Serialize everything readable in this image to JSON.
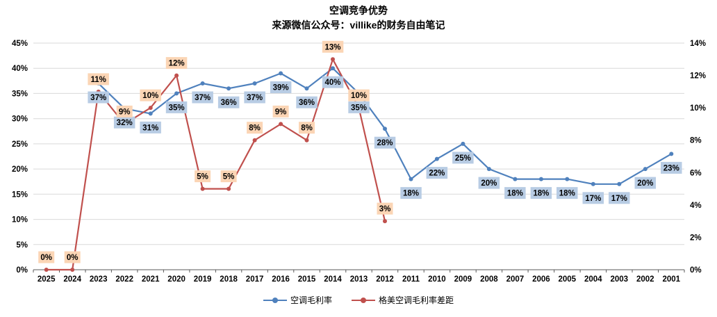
{
  "header": {
    "title": "空调竞争优势",
    "subtitle": "来源微信公众号：villike的财务自由笔记"
  },
  "chart_data": {
    "type": "line",
    "categories": [
      "2025",
      "2024",
      "2023",
      "2022",
      "2021",
      "2020",
      "2019",
      "2018",
      "2017",
      "2016",
      "2015",
      "2014",
      "2013",
      "2012",
      "2011",
      "2010",
      "2009",
      "2008",
      "2007",
      "2006",
      "2005",
      "2004",
      "2003",
      "2002",
      "2001"
    ],
    "series": [
      {
        "name": "空调毛利率",
        "axis": "left",
        "color": "#4F81BD",
        "label_bg": "#B8CCE4",
        "label_position": "below",
        "values": [
          null,
          null,
          37,
          32,
          31,
          35,
          37,
          36,
          37,
          39,
          36,
          40,
          35,
          28,
          18,
          22,
          25,
          20,
          18,
          18,
          18,
          17,
          17,
          20,
          23
        ]
      },
      {
        "name": "格美空调毛利率差距",
        "axis": "right",
        "color": "#C0504D",
        "label_bg": "#FBD5B5",
        "label_position": "above",
        "values": [
          0,
          0,
          11,
          9,
          10,
          12,
          5,
          5,
          8,
          9,
          8,
          13,
          10,
          3,
          null,
          null,
          null,
          null,
          null,
          null,
          null,
          null,
          null,
          null,
          null
        ]
      }
    ],
    "left_axis": {
      "min": 0,
      "max": 45,
      "step": 5,
      "suffix": "%"
    },
    "right_axis": {
      "min": 0,
      "max": 14,
      "step": 2,
      "suffix": "%"
    },
    "grid": true,
    "legend_position": "bottom"
  }
}
